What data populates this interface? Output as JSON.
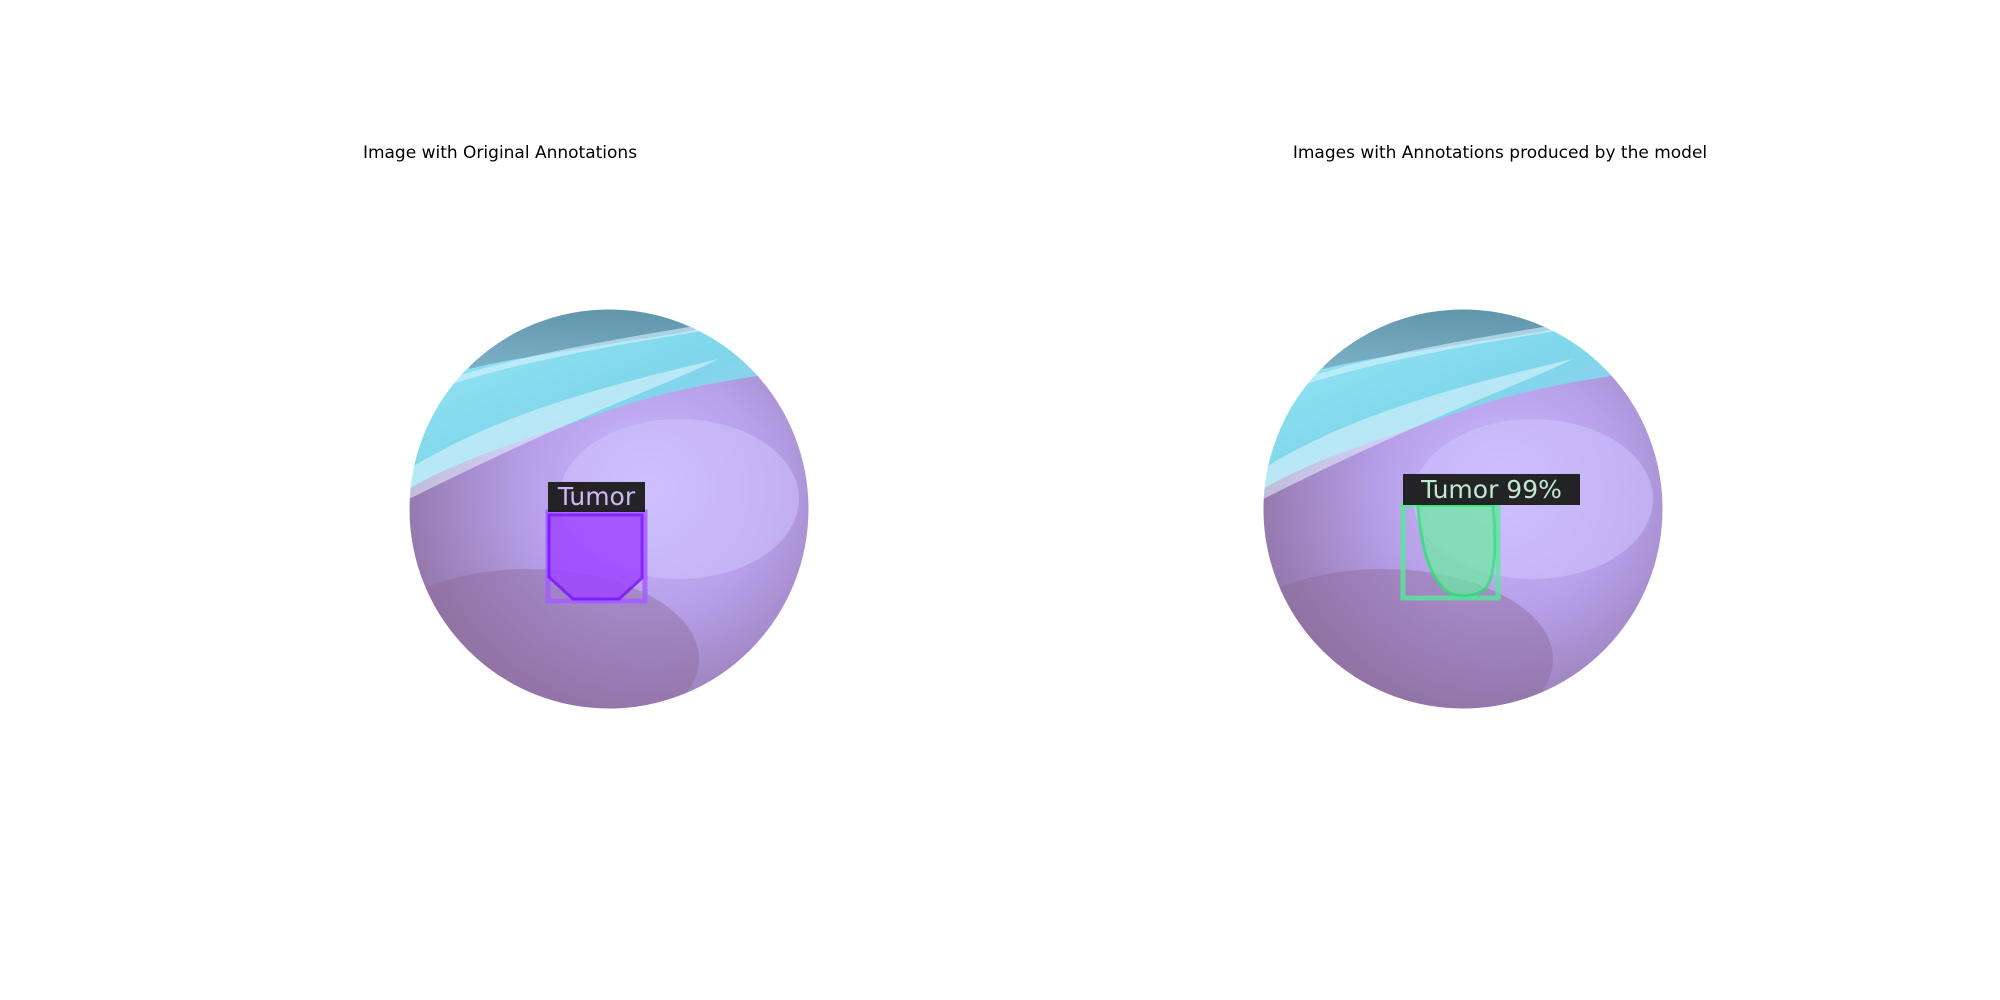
{
  "figure": {
    "panels": [
      {
        "title": "Image with Original Annotations",
        "annotation": {
          "label": "Tumor",
          "color": "#8b2cff",
          "source": "ground truth"
        }
      },
      {
        "title": "Images with Annotations produced by the model",
        "annotation": {
          "label": "Tumor 99%",
          "color": "#2ee878",
          "source": "model prediction"
        }
      }
    ]
  },
  "colors": {
    "tissue_base": "#b59ee6",
    "tissue_light": "#c6b8ff",
    "tissue_dark": "#8d6c9e",
    "highlight_cyan": "#8fe0f2",
    "label_background": "#1a1a1a"
  }
}
